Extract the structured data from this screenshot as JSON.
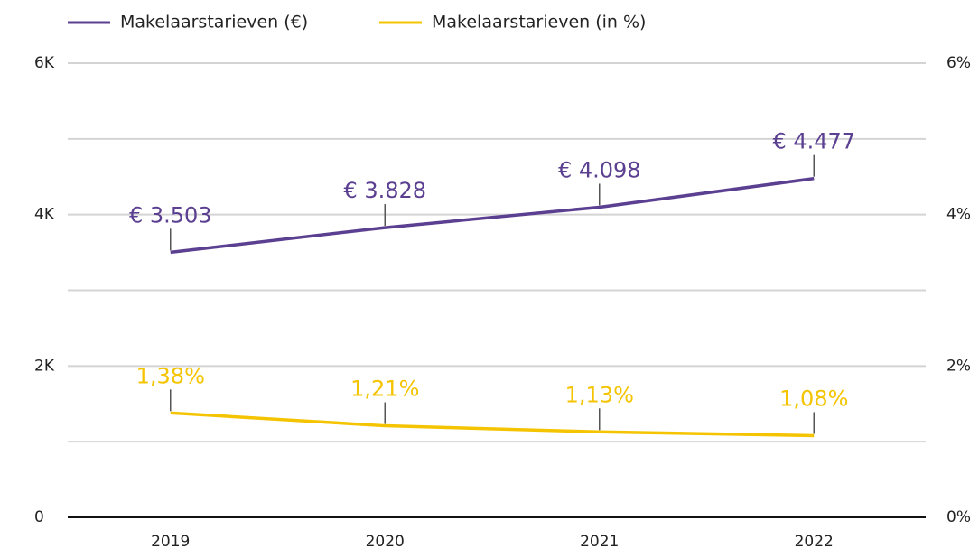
{
  "chart_data": {
    "type": "line",
    "categories": [
      "2019",
      "2020",
      "2021",
      "2022"
    ],
    "series": [
      {
        "name": "Makelaarstarieven (€)",
        "color": "#5b3f91",
        "values": [
          3503,
          3828,
          4098,
          4477
        ],
        "value_labels": [
          "€ 3.503",
          "€ 3.828",
          "€ 4.098",
          "€ 4.477"
        ]
      },
      {
        "name": "Makelaarstarieven (in %)",
        "color": "#f5c400",
        "axis": "y2",
        "values": [
          1.38,
          1.21,
          1.13,
          1.08
        ],
        "value_labels": [
          "1,38%",
          "1,21%",
          "1,13%",
          "1,08%"
        ]
      }
    ],
    "ylim": [
      0,
      6000
    ],
    "yticks": [
      0,
      {
        "value": 2000,
        "label": "2K"
      },
      {
        "value": 4000,
        "label": "4K"
      },
      {
        "value": 6000,
        "label": "6K"
      }
    ],
    "yminorticks": [
      1000,
      3000,
      5000
    ],
    "y2lim": [
      0,
      6
    ],
    "y2ticks": [
      {
        "value": 0,
        "label": "0%"
      },
      {
        "value": 2,
        "label": "2%"
      },
      {
        "value": 4,
        "label": "4%"
      },
      {
        "value": 6,
        "label": "6%"
      }
    ],
    "grid": true,
    "legend": "top-left"
  }
}
